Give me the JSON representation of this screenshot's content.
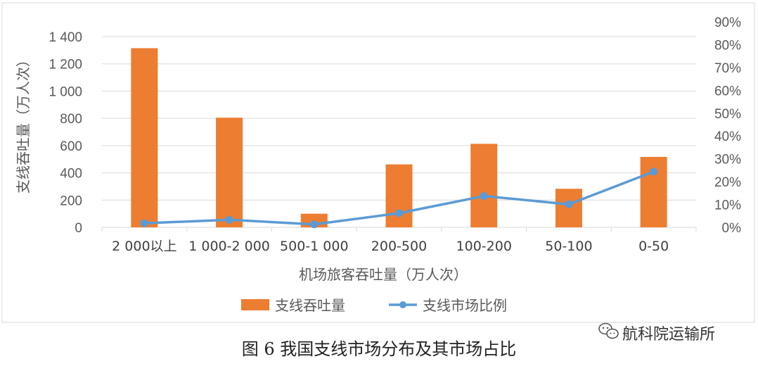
{
  "chart_data": {
    "type": "bar+line",
    "categories": [
      "2 000以上",
      "1 000-2 000",
      "500-1 000",
      "200-500",
      "100-200",
      "50-100",
      "0-50"
    ],
    "series": [
      {
        "name": "支线吞吐量",
        "type": "bar",
        "axis": "left",
        "color": "#ED7D31",
        "values": [
          1315,
          805,
          100,
          462,
          613,
          283,
          517
        ]
      },
      {
        "name": "支线市场比例",
        "type": "line",
        "axis": "right",
        "color": "#5B9BD5",
        "values": [
          0.018,
          0.033,
          0.013,
          0.062,
          0.137,
          0.101,
          0.244
        ]
      }
    ],
    "xlabel": "机场旅客吞吐量（万人次）",
    "ylabel": "支线吞吐量（万人次）",
    "ylim": [
      0,
      1400
    ],
    "yticks": [
      "0",
      "200",
      "400",
      "600",
      "800",
      "1 000",
      "1 200",
      "1 400"
    ],
    "y2lim": [
      0,
      0.9
    ],
    "y2ticks": [
      "0%",
      "10%",
      "20%",
      "30%",
      "40%",
      "50%",
      "60%",
      "70%",
      "80%",
      "90%"
    ],
    "grid": true,
    "legend_position": "bottom"
  },
  "caption": "图 6  我国支线市场分布及其市场占比",
  "watermark": {
    "icon": "wechat-icon",
    "text": "航科院运输所"
  }
}
